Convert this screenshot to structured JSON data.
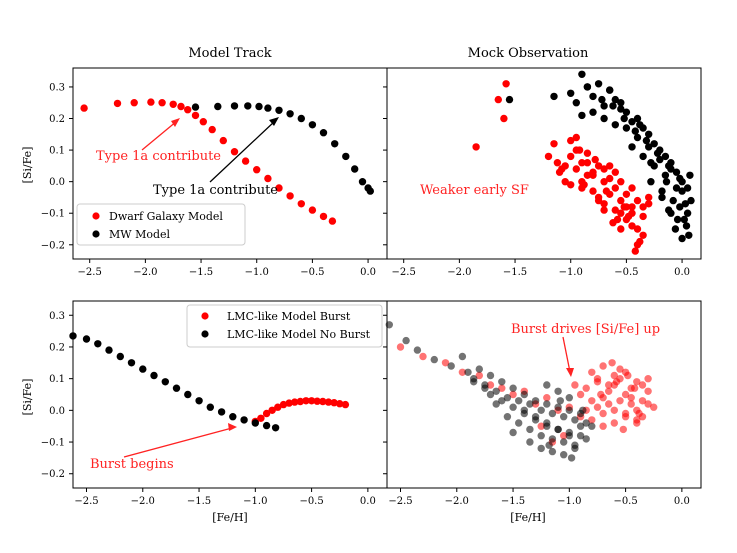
{
  "titles": {
    "left": "Model Track",
    "right": "Mock Observation"
  },
  "axis_labels": {
    "x": "[Fe/H]",
    "y": "[Si/Fe]"
  },
  "chart_data": [
    {
      "id": "top-left",
      "type": "scatter",
      "title": "Model Track",
      "xlim": [
        -2.65,
        0.17
      ],
      "ylim": [
        -0.245,
        0.36
      ],
      "xticks": [
        -2.5,
        -2.0,
        -1.5,
        -1.0,
        -0.5,
        0.0
      ],
      "yticks": [
        -0.2,
        -0.1,
        0.0,
        0.1,
        0.2,
        0.3
      ],
      "legend": {
        "position": "lower-left",
        "entries": [
          "Dwarf Galaxy Model",
          "MW Model"
        ]
      },
      "series": [
        {
          "name": "Dwarf Galaxy Model",
          "color": "#ff0000",
          "x": [
            -2.55,
            -2.25,
            -2.1,
            -1.95,
            -1.85,
            -1.75,
            -1.68,
            -1.62,
            -1.55,
            -1.48,
            -1.4,
            -1.3,
            -1.2,
            -1.1,
            -1.0,
            -0.9,
            -0.8,
            -0.7,
            -0.6,
            -0.5,
            -0.4,
            -0.32
          ],
          "y": [
            0.233,
            0.248,
            0.25,
            0.252,
            0.25,
            0.245,
            0.238,
            0.228,
            0.21,
            0.19,
            0.165,
            0.13,
            0.095,
            0.065,
            0.038,
            0.01,
            -0.02,
            -0.045,
            -0.07,
            -0.09,
            -0.11,
            -0.125
          ]
        },
        {
          "name": "MW Model",
          "color": "#000000",
          "x": [
            -1.55,
            -1.35,
            -1.2,
            -1.08,
            -0.98,
            -0.9,
            -0.8,
            -0.7,
            -0.6,
            -0.5,
            -0.4,
            -0.3,
            -0.2,
            -0.12,
            -0.05,
            0.0,
            0.02
          ],
          "y": [
            0.236,
            0.238,
            0.24,
            0.24,
            0.238,
            0.233,
            0.226,
            0.215,
            0.2,
            0.18,
            0.155,
            0.12,
            0.08,
            0.04,
            0.0,
            -0.02,
            -0.03
          ]
        }
      ],
      "annotations": [
        {
          "text": "Type 1a contribute",
          "color": "#ff2222",
          "arrow_to": [
            -1.6,
            0.2
          ]
        },
        {
          "text": "Type 1a contribute",
          "color": "#000000",
          "arrow_to": [
            -0.8,
            0.215
          ]
        }
      ]
    },
    {
      "id": "top-right",
      "type": "scatter",
      "title": "Mock Observation",
      "xlim": [
        -2.65,
        0.17
      ],
      "ylim": [
        -0.245,
        0.36
      ],
      "xticks": [
        -2.5,
        -2.0,
        -1.5,
        -1.0,
        -0.5,
        0.0
      ],
      "yticks": [
        -0.2,
        -0.1,
        0.0,
        0.1,
        0.2,
        0.3
      ],
      "series": [
        {
          "name": "Dwarf Galaxy Model",
          "color": "#ff0000",
          "x": [
            -1.58,
            -1.65,
            -1.6,
            -1.85,
            -1.2,
            -1.12,
            -1.05,
            -1.0,
            -0.95,
            -0.9,
            -0.85,
            -0.8,
            -0.75,
            -0.7,
            -0.65,
            -0.6,
            -0.55,
            -0.5,
            -0.45,
            -0.4,
            -0.35,
            -0.3,
            -1.15,
            -1.1,
            -1.05,
            -1.0,
            -0.95,
            -0.9,
            -0.85,
            -0.8,
            -0.75,
            -0.7,
            -0.65,
            -0.6,
            -0.55,
            -0.5,
            -0.45,
            -0.4,
            -0.35,
            -0.3,
            -1.0,
            -0.95,
            -0.9,
            -0.85,
            -0.8,
            -0.75,
            -0.7,
            -0.65,
            -0.6,
            -0.55,
            -0.5,
            -0.45,
            -0.4,
            -0.35,
            -0.42,
            -0.55,
            -0.62,
            -0.48,
            -0.38,
            -0.7,
            -0.88,
            -1.08,
            -0.58,
            -0.52,
            -0.45,
            -0.68,
            -0.78,
            -0.92
          ],
          "y": [
            0.31,
            0.26,
            0.2,
            0.11,
            0.08,
            0.06,
            0.05,
            0.08,
            0.04,
            0.06,
            0.02,
            0.03,
            0.05,
            0.0,
            0.01,
            -0.02,
            0.0,
            -0.04,
            -0.02,
            -0.06,
            -0.08,
            -0.05,
            0.12,
            0.03,
            0.0,
            -0.01,
            0.1,
            0.0,
            0.06,
            -0.03,
            -0.05,
            -0.07,
            0.05,
            -0.09,
            -0.1,
            -0.12,
            -0.08,
            -0.15,
            -0.11,
            -0.07,
            0.13,
            0.14,
            -0.02,
            0.09,
            0.02,
            -0.06,
            0.04,
            -0.04,
            0.03,
            -0.06,
            -0.08,
            -0.1,
            -0.2,
            -0.17,
            -0.22,
            -0.15,
            -0.13,
            -0.11,
            -0.19,
            -0.09,
            -0.01,
            0.04,
            -0.12,
            -0.08,
            -0.14,
            -0.03,
            0.07,
            0.1
          ]
        },
        {
          "name": "MW Model",
          "color": "#000000",
          "x": [
            -1.55,
            -1.15,
            -1.0,
            -0.95,
            -0.9,
            -0.85,
            -0.8,
            -0.75,
            -0.7,
            -0.65,
            -0.6,
            -0.55,
            -0.5,
            -0.45,
            -0.4,
            -0.35,
            -0.3,
            -0.25,
            -0.2,
            -0.15,
            -0.1,
            -0.05,
            0.0,
            0.05,
            0.08,
            -0.9,
            -0.8,
            -0.7,
            -0.6,
            -0.5,
            -0.4,
            -0.3,
            -0.2,
            -0.1,
            0.0,
            0.05,
            -0.72,
            -0.62,
            -0.52,
            -0.42,
            -0.32,
            -0.22,
            -0.12,
            -0.02,
            -0.45,
            -0.35,
            -0.25,
            -0.15,
            -0.05,
            0.03,
            -0.28,
            -0.18,
            -0.08,
            0.02,
            -0.12,
            -0.06,
            0.0,
            0.06,
            -0.18,
            -0.1,
            -0.04,
            0.04,
            -0.85,
            -0.65,
            -0.55,
            -0.38,
            -0.28,
            -0.14,
            -0.02,
            0.07
          ],
          "y": [
            0.26,
            0.27,
            0.28,
            0.25,
            0.34,
            0.3,
            0.27,
            0.31,
            0.24,
            0.29,
            0.26,
            0.23,
            0.22,
            0.19,
            0.2,
            0.17,
            0.15,
            0.12,
            0.1,
            0.08,
            0.06,
            0.03,
            0.0,
            -0.02,
            -0.06,
            0.21,
            0.22,
            0.2,
            0.18,
            0.17,
            0.14,
            0.11,
            0.07,
            0.04,
            -0.03,
            -0.1,
            0.26,
            0.24,
            0.2,
            0.16,
            0.13,
            0.09,
            0.05,
            0.01,
            0.11,
            0.08,
            0.05,
            0.02,
            -0.02,
            -0.07,
            0.0,
            -0.03,
            -0.06,
            -0.12,
            -0.09,
            -0.15,
            -0.18,
            -0.17,
            -0.05,
            -0.1,
            -0.12,
            -0.14,
            0.3,
            0.29,
            0.25,
            0.18,
            0.06,
            0.0,
            -0.08,
            0.02
          ]
        }
      ],
      "annotations": [
        {
          "text": "Weaker early SF",
          "color": "#ff2222"
        }
      ]
    },
    {
      "id": "bottom-left",
      "type": "scatter",
      "xlim": [
        -2.62,
        0.17
      ],
      "ylim": [
        -0.245,
        0.345
      ],
      "xticks": [
        -2.5,
        -2.0,
        -1.5,
        -1.0,
        -0.5,
        0.0
      ],
      "yticks": [
        -0.2,
        -0.1,
        0.0,
        0.1,
        0.2,
        0.3
      ],
      "xlabel": "[Fe/H]",
      "ylabel": "[Si/Fe]",
      "legend": {
        "position": "top-right",
        "entries": [
          "LMC-like Model Burst",
          "LMC-like Model No Burst"
        ]
      },
      "series": [
        {
          "name": "LMC-like Model Burst",
          "color": "#ff0000",
          "x": [
            -1.0,
            -0.95,
            -0.9,
            -0.85,
            -0.8,
            -0.75,
            -0.7,
            -0.65,
            -0.6,
            -0.55,
            -0.5,
            -0.45,
            -0.4,
            -0.35,
            -0.3,
            -0.25,
            -0.2
          ],
          "y": [
            -0.035,
            -0.025,
            -0.01,
            0.0,
            0.01,
            0.018,
            0.023,
            0.026,
            0.028,
            0.03,
            0.03,
            0.029,
            0.028,
            0.026,
            0.024,
            0.021,
            0.018
          ]
        },
        {
          "name": "LMC-like Model No Burst",
          "color": "#000000",
          "x": [
            -2.62,
            -2.5,
            -2.4,
            -2.3,
            -2.2,
            -2.1,
            -2.0,
            -1.9,
            -1.8,
            -1.7,
            -1.6,
            -1.5,
            -1.4,
            -1.3,
            -1.2,
            -1.1,
            -1.0,
            -0.9,
            -0.82
          ],
          "y": [
            0.235,
            0.225,
            0.21,
            0.19,
            0.17,
            0.15,
            0.13,
            0.11,
            0.09,
            0.07,
            0.05,
            0.03,
            0.01,
            -0.005,
            -0.02,
            -0.03,
            -0.04,
            -0.048,
            -0.055
          ]
        }
      ],
      "annotations": [
        {
          "text": "Burst begins",
          "color": "#ff2222",
          "arrow_to": [
            -1.05,
            -0.055
          ]
        }
      ]
    },
    {
      "id": "bottom-right",
      "type": "scatter",
      "xlim": [
        -2.62,
        0.17
      ],
      "ylim": [
        -0.245,
        0.345
      ],
      "xticks": [
        -2.5,
        -2.0,
        -1.5,
        -1.0,
        -0.5,
        0.0
      ],
      "yticks": [
        -0.2,
        -0.1,
        0.0,
        0.1,
        0.2,
        0.3
      ],
      "xlabel": "[Fe/H]",
      "series": [
        {
          "name": "LMC-like Model Burst",
          "color": "#ff0000",
          "x": [
            -2.5,
            -2.3,
            -2.1,
            -1.95,
            -1.8,
            -1.7,
            -1.6,
            -1.5,
            -1.4,
            -1.3,
            -1.2,
            -1.1,
            -1.0,
            -0.95,
            -0.9,
            -0.85,
            -0.8,
            -0.75,
            -0.7,
            -0.65,
            -0.6,
            -0.55,
            -0.5,
            -0.45,
            -0.4,
            -0.35,
            -0.3,
            -0.25,
            -0.9,
            -0.85,
            -0.8,
            -0.75,
            -0.7,
            -0.65,
            -0.6,
            -0.55,
            -0.5,
            -0.45,
            -0.4,
            -0.35,
            -0.3,
            -0.8,
            -0.75,
            -0.7,
            -0.65,
            -0.6,
            -0.55,
            -0.5,
            -0.45,
            -0.4,
            -0.35,
            -0.3,
            -0.7,
            -0.6,
            -0.5,
            -0.4,
            -0.62,
            -0.52,
            -0.42,
            -0.72,
            -0.58,
            -0.48,
            -0.38,
            -1.05,
            -1.15,
            -1.25
          ],
          "y": [
            0.2,
            0.17,
            0.15,
            0.12,
            0.11,
            0.08,
            0.07,
            0.05,
            0.06,
            0.02,
            0.04,
            0.0,
            0.01,
            0.08,
            0.05,
            0.07,
            0.03,
            0.09,
            0.04,
            0.06,
            0.08,
            0.1,
            0.05,
            0.07,
            0.09,
            0.03,
            0.02,
            0.01,
            -0.02,
            0.0,
            -0.03,
            0.01,
            -0.01,
            0.02,
            0.0,
            0.03,
            -0.01,
            0.04,
            0.0,
            -0.02,
            0.06,
            0.12,
            0.1,
            0.14,
            0.08,
            0.11,
            0.13,
            0.12,
            0.02,
            -0.04,
            0.08,
            0.1,
            -0.05,
            -0.04,
            -0.02,
            -0.03,
            0.15,
            -0.06,
            0.07,
            0.05,
            0.09,
            0.11,
            -0.01,
            -0.08,
            -0.1,
            -0.05
          ]
        },
        {
          "name": "LMC-like Model No Burst",
          "color": "#000000",
          "x": [
            -2.6,
            -2.45,
            -2.35,
            -2.2,
            -2.05,
            -1.95,
            -1.9,
            -1.85,
            -1.8,
            -1.75,
            -1.7,
            -1.65,
            -1.6,
            -1.55,
            -1.5,
            -1.45,
            -1.4,
            -1.35,
            -1.3,
            -1.25,
            -1.2,
            -1.15,
            -1.1,
            -1.05,
            -1.0,
            -0.95,
            -0.9,
            -0.85,
            -0.8,
            -1.7,
            -1.6,
            -1.5,
            -1.4,
            -1.3,
            -1.2,
            -1.1,
            -1.0,
            -0.9,
            -1.55,
            -1.45,
            -1.35,
            -1.25,
            -1.15,
            -1.05,
            -0.95,
            -0.85,
            -1.4,
            -1.3,
            -1.2,
            -1.1,
            -1.0,
            -0.9,
            -1.25,
            -1.15,
            -1.05,
            -0.95,
            -1.2,
            -1.1,
            -1.0,
            -1.85,
            -1.75,
            -1.65,
            -1.5,
            -1.35,
            -1.18,
            -0.98,
            -1.08,
            -0.88
          ],
          "y": [
            0.27,
            0.22,
            0.19,
            0.16,
            0.14,
            0.17,
            0.12,
            0.1,
            0.13,
            0.08,
            0.11,
            0.06,
            0.09,
            0.04,
            0.07,
            0.03,
            0.05,
            0.02,
            0.03,
            0.0,
            0.02,
            -0.01,
            0.01,
            -0.02,
            0.0,
            -0.03,
            -0.01,
            -0.04,
            -0.05,
            0.05,
            0.03,
            0.01,
            -0.01,
            -0.03,
            -0.05,
            -0.06,
            -0.07,
            -0.08,
            -0.02,
            -0.04,
            -0.06,
            -0.08,
            -0.09,
            -0.1,
            -0.11,
            -0.09,
            0.0,
            -0.02,
            -0.04,
            -0.06,
            -0.08,
            -0.05,
            -0.12,
            -0.13,
            -0.14,
            -0.12,
            0.08,
            0.06,
            0.04,
            0.09,
            0.07,
            0.02,
            -0.07,
            -0.1,
            -0.11,
            -0.15,
            0.03,
            0.0
          ]
        }
      ],
      "annotations": [
        {
          "text": "Burst drives [Si/Fe] up",
          "color": "#ff2222",
          "arrow_to": [
            -0.97,
            0.11
          ]
        }
      ]
    }
  ]
}
